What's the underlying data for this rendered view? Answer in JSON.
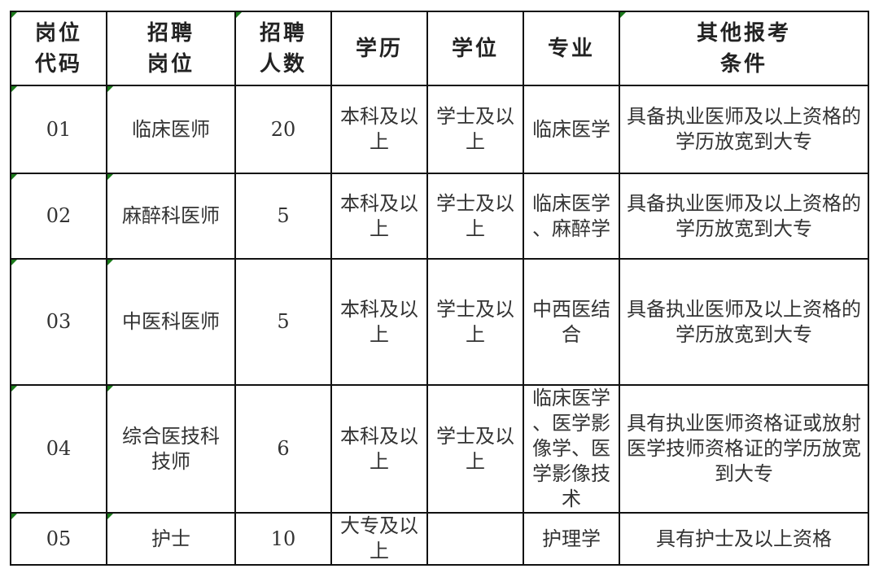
{
  "headers": [
    "岗位代码",
    "招聘岗位",
    "招聘人数",
    "学历",
    "学位",
    "专业",
    "其他报考条件"
  ],
  "rows": [
    {
      "code": "01",
      "post": "临床医师",
      "count": "20",
      "education": "本科及以上",
      "degree": "学士及以上",
      "major": "临床医学",
      "other": "具备执业医师及以上资格的学历放宽到大专"
    },
    {
      "code": "02",
      "post": "麻醉科医师",
      "count": "5",
      "education": "本科及以上",
      "degree": "学士及以上",
      "major": "临床医学、麻醉学",
      "other": "具备执业医师及以上资格的学历放宽到大专"
    },
    {
      "code": "03",
      "post": "中医科医师",
      "count": "5",
      "education": "本科及以上",
      "degree": "学士及以上",
      "major": "中西医结合",
      "other": "具备执业医师及以上资格的学历放宽到大专"
    },
    {
      "code": "04",
      "post": "综合医技科技师",
      "count": "6",
      "education": "本科及以上",
      "degree": "学士及以上",
      "major": "临床医学、医学影像学、医学影像技术",
      "other": "具有执业医师资格证或放射医学技师资格证的学历放宽到大专"
    },
    {
      "code": "05",
      "post": "护士",
      "count": "10",
      "education": "大专及以上",
      "degree": "",
      "major": "护理学",
      "other": "具有护士及以上资格"
    }
  ],
  "colors": {
    "border": "#111111",
    "error_marker": "#1a7a1a"
  }
}
